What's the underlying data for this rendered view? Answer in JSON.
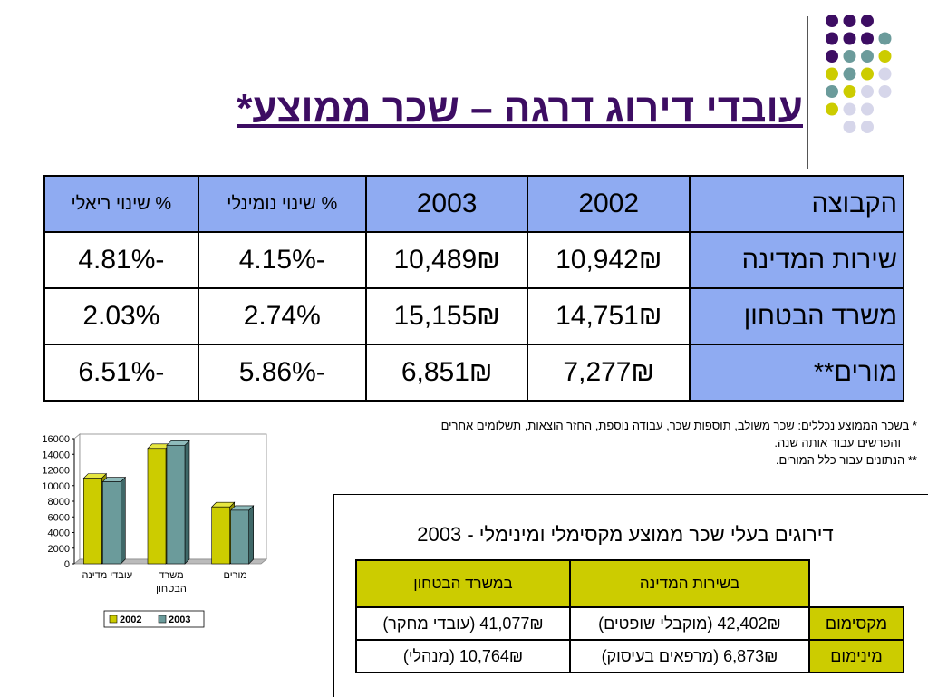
{
  "slide_title": "עובדי דירוג דרגה – שכר ממוצע*",
  "main_table": {
    "headers": [
      "הקבוצה",
      "2002",
      "2003",
      "% שינוי נומינלי",
      "% שינוי ריאלי"
    ],
    "rows": [
      [
        "שירות המדינה",
        "10,942₪",
        "10,489₪",
        "-4.15%",
        "-4.81%"
      ],
      [
        "משרד הבטחון",
        "14,751₪",
        "15,155₪",
        "2.74%",
        "2.03%"
      ],
      [
        "מורים**",
        "7,277₪",
        "6,851₪",
        "-5.86%",
        "-6.51%"
      ]
    ]
  },
  "footnotes": {
    "line1": "* בשכר הממוצע נכללים: שכר משולב, תוספות שכר, עבודה נוספת, החזר הוצאות, תשלומים אחרים",
    "line2": "והפרשים עבור אותה שנה.",
    "line3": "** הנתונים עבור כלל המורים."
  },
  "chart_data": {
    "type": "bar",
    "categories": [
      "עובדי מדינה",
      "משרד הבטחון",
      "מורים"
    ],
    "category_lines": [
      [
        "עובדי מדינה"
      ],
      [
        "משרד",
        "הבטחון"
      ],
      [
        "מורים"
      ]
    ],
    "series": [
      {
        "name": "2002",
        "values": [
          10942,
          14751,
          7277
        ],
        "color": "#cccc00"
      },
      {
        "name": "2003",
        "values": [
          10489,
          15155,
          6851
        ],
        "color": "#6b9b9b"
      }
    ],
    "y_ticks": [
      "16000",
      "14000",
      "12000",
      "10000",
      "8000",
      "6000",
      "4000",
      "2000",
      "0"
    ],
    "ylim": [
      0,
      16000
    ],
    "legend_position": "bottom",
    "grid": false
  },
  "min_max": {
    "title": "דירוגים בעלי שכר ממוצע מקסימלי ומינימלי - 2003",
    "headers": [
      "בשירות המדינה",
      "במשרד הבטחון"
    ],
    "rows": [
      {
        "label": "מקסימום",
        "state": "42,402₪ (מוקבלי שופטים)",
        "defense": "41,077₪ (עובדי מחקר)"
      },
      {
        "label": "מינימום",
        "state": "6,873₪ (מרפאים בעיסוק)",
        "defense": "10,764₪ (מנהלי)"
      }
    ]
  },
  "colors": {
    "dot_purple": "#3d0d63",
    "dot_teal": "#6b9b9b",
    "dot_yellow": "#cccc00",
    "dot_lavender": "#d6d6ea",
    "header_blue": "#8fabf2",
    "header_yellow": "#cccc00"
  }
}
